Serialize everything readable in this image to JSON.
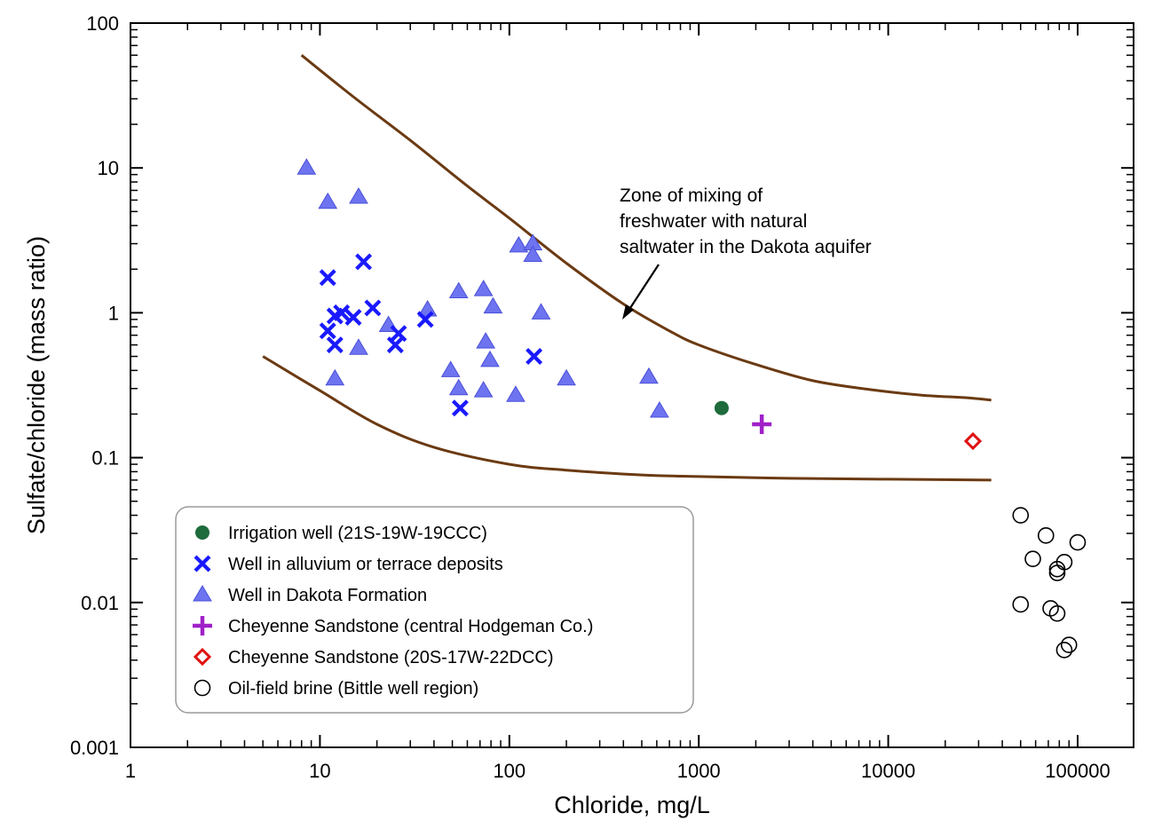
{
  "chart_data": {
    "type": "scatter",
    "title": "",
    "xlabel": "Chloride, mg/L",
    "ylabel": "Sulfate/chloride (mass ratio)",
    "x_scale": "log",
    "y_scale": "log",
    "xlim": [
      1,
      200000
    ],
    "ylim": [
      0.001,
      100
    ],
    "x_tick_labels": [
      "1",
      "10",
      "100",
      "1000",
      "10000",
      "100000"
    ],
    "y_tick_labels": [
      "100",
      "10",
      "1",
      "0.1",
      "0.01",
      "0.001"
    ],
    "grid": false,
    "legend_position": "bottom-left",
    "annotation": {
      "lines": [
        "Zone of mixing of",
        "freshwater with natural",
        "saltwater in the Dakota aquifer"
      ]
    },
    "colors": {
      "irrigation": "#1e6b3c",
      "alluvium": "#1a1aff",
      "dakota_fill": "#6e74f0",
      "dakota_stroke": "#4a50d8",
      "cheyenne_central": "#a020c8",
      "cheyenne_dcc": "#e01010",
      "brine": "#000000",
      "curve": "#6b3a12"
    },
    "curves": [
      {
        "name": "upper",
        "x": [
          8,
          15,
          30,
          60,
          100,
          200,
          400,
          700,
          1000,
          2000,
          4000,
          8000,
          15000,
          25000,
          35000
        ],
        "y": [
          60,
          31,
          15.5,
          7.5,
          4.5,
          2.2,
          1.15,
          0.75,
          0.6,
          0.44,
          0.34,
          0.295,
          0.27,
          0.26,
          0.25
        ]
      },
      {
        "name": "lower",
        "x": [
          5,
          10,
          20,
          40,
          100,
          200,
          500,
          1000,
          3000,
          10000,
          35000
        ],
        "y": [
          0.5,
          0.29,
          0.17,
          0.118,
          0.09,
          0.082,
          0.076,
          0.074,
          0.072,
          0.071,
          0.07
        ]
      }
    ],
    "series": [
      {
        "name": "Irrigation well (21S-19W-19CCC)",
        "marker": "circle-filled",
        "points": [
          [
            1320,
            0.22
          ]
        ]
      },
      {
        "name": "Well in alluvium or terrace deposits",
        "marker": "x",
        "points": [
          [
            11,
            1.75
          ],
          [
            17,
            2.25
          ],
          [
            11,
            0.75
          ],
          [
            12,
            0.95
          ],
          [
            13,
            1.0
          ],
          [
            15,
            0.93
          ],
          [
            12,
            0.6
          ],
          [
            19,
            1.08
          ],
          [
            26,
            0.72
          ],
          [
            25,
            0.6
          ],
          [
            36,
            0.9
          ],
          [
            55,
            0.22
          ],
          [
            135,
            0.5
          ]
        ]
      },
      {
        "name": "Well in Dakota Formation",
        "marker": "triangle-filled",
        "points": [
          [
            8.5,
            10
          ],
          [
            11,
            5.8
          ],
          [
            16,
            6.3
          ],
          [
            16,
            0.57
          ],
          [
            12,
            0.35
          ],
          [
            23,
            0.82
          ],
          [
            37,
            1.05
          ],
          [
            49,
            0.4
          ],
          [
            54,
            1.4
          ],
          [
            54,
            0.3
          ],
          [
            73,
            1.45
          ],
          [
            75,
            0.63
          ],
          [
            82,
            1.1
          ],
          [
            79,
            0.47
          ],
          [
            73,
            0.29
          ],
          [
            108,
            0.27
          ],
          [
            112,
            2.9
          ],
          [
            133,
            3.0
          ],
          [
            133,
            2.5
          ],
          [
            147,
            1.0
          ],
          [
            200,
            0.35
          ],
          [
            545,
            0.36
          ],
          [
            620,
            0.21
          ]
        ]
      },
      {
        "name": "Cheyenne Sandstone (central Hodgeman Co.)",
        "marker": "plus",
        "points": [
          [
            2150,
            0.17
          ]
        ]
      },
      {
        "name": "Cheyenne Sandstone (20S-17W-22DCC)",
        "marker": "diamond-open",
        "points": [
          [
            28000,
            0.13
          ]
        ]
      },
      {
        "name": "Oil-field brine (Bittle well region)",
        "marker": "circle-open",
        "points": [
          [
            50000,
            0.04
          ],
          [
            68000,
            0.029
          ],
          [
            100000,
            0.026
          ],
          [
            58000,
            0.02
          ],
          [
            85000,
            0.019
          ],
          [
            78000,
            0.017
          ],
          [
            78000,
            0.016
          ],
          [
            50000,
            0.0097
          ],
          [
            72000,
            0.0091
          ],
          [
            78000,
            0.0084
          ],
          [
            90000,
            0.0051
          ],
          [
            85000,
            0.0047
          ]
        ]
      }
    ]
  }
}
